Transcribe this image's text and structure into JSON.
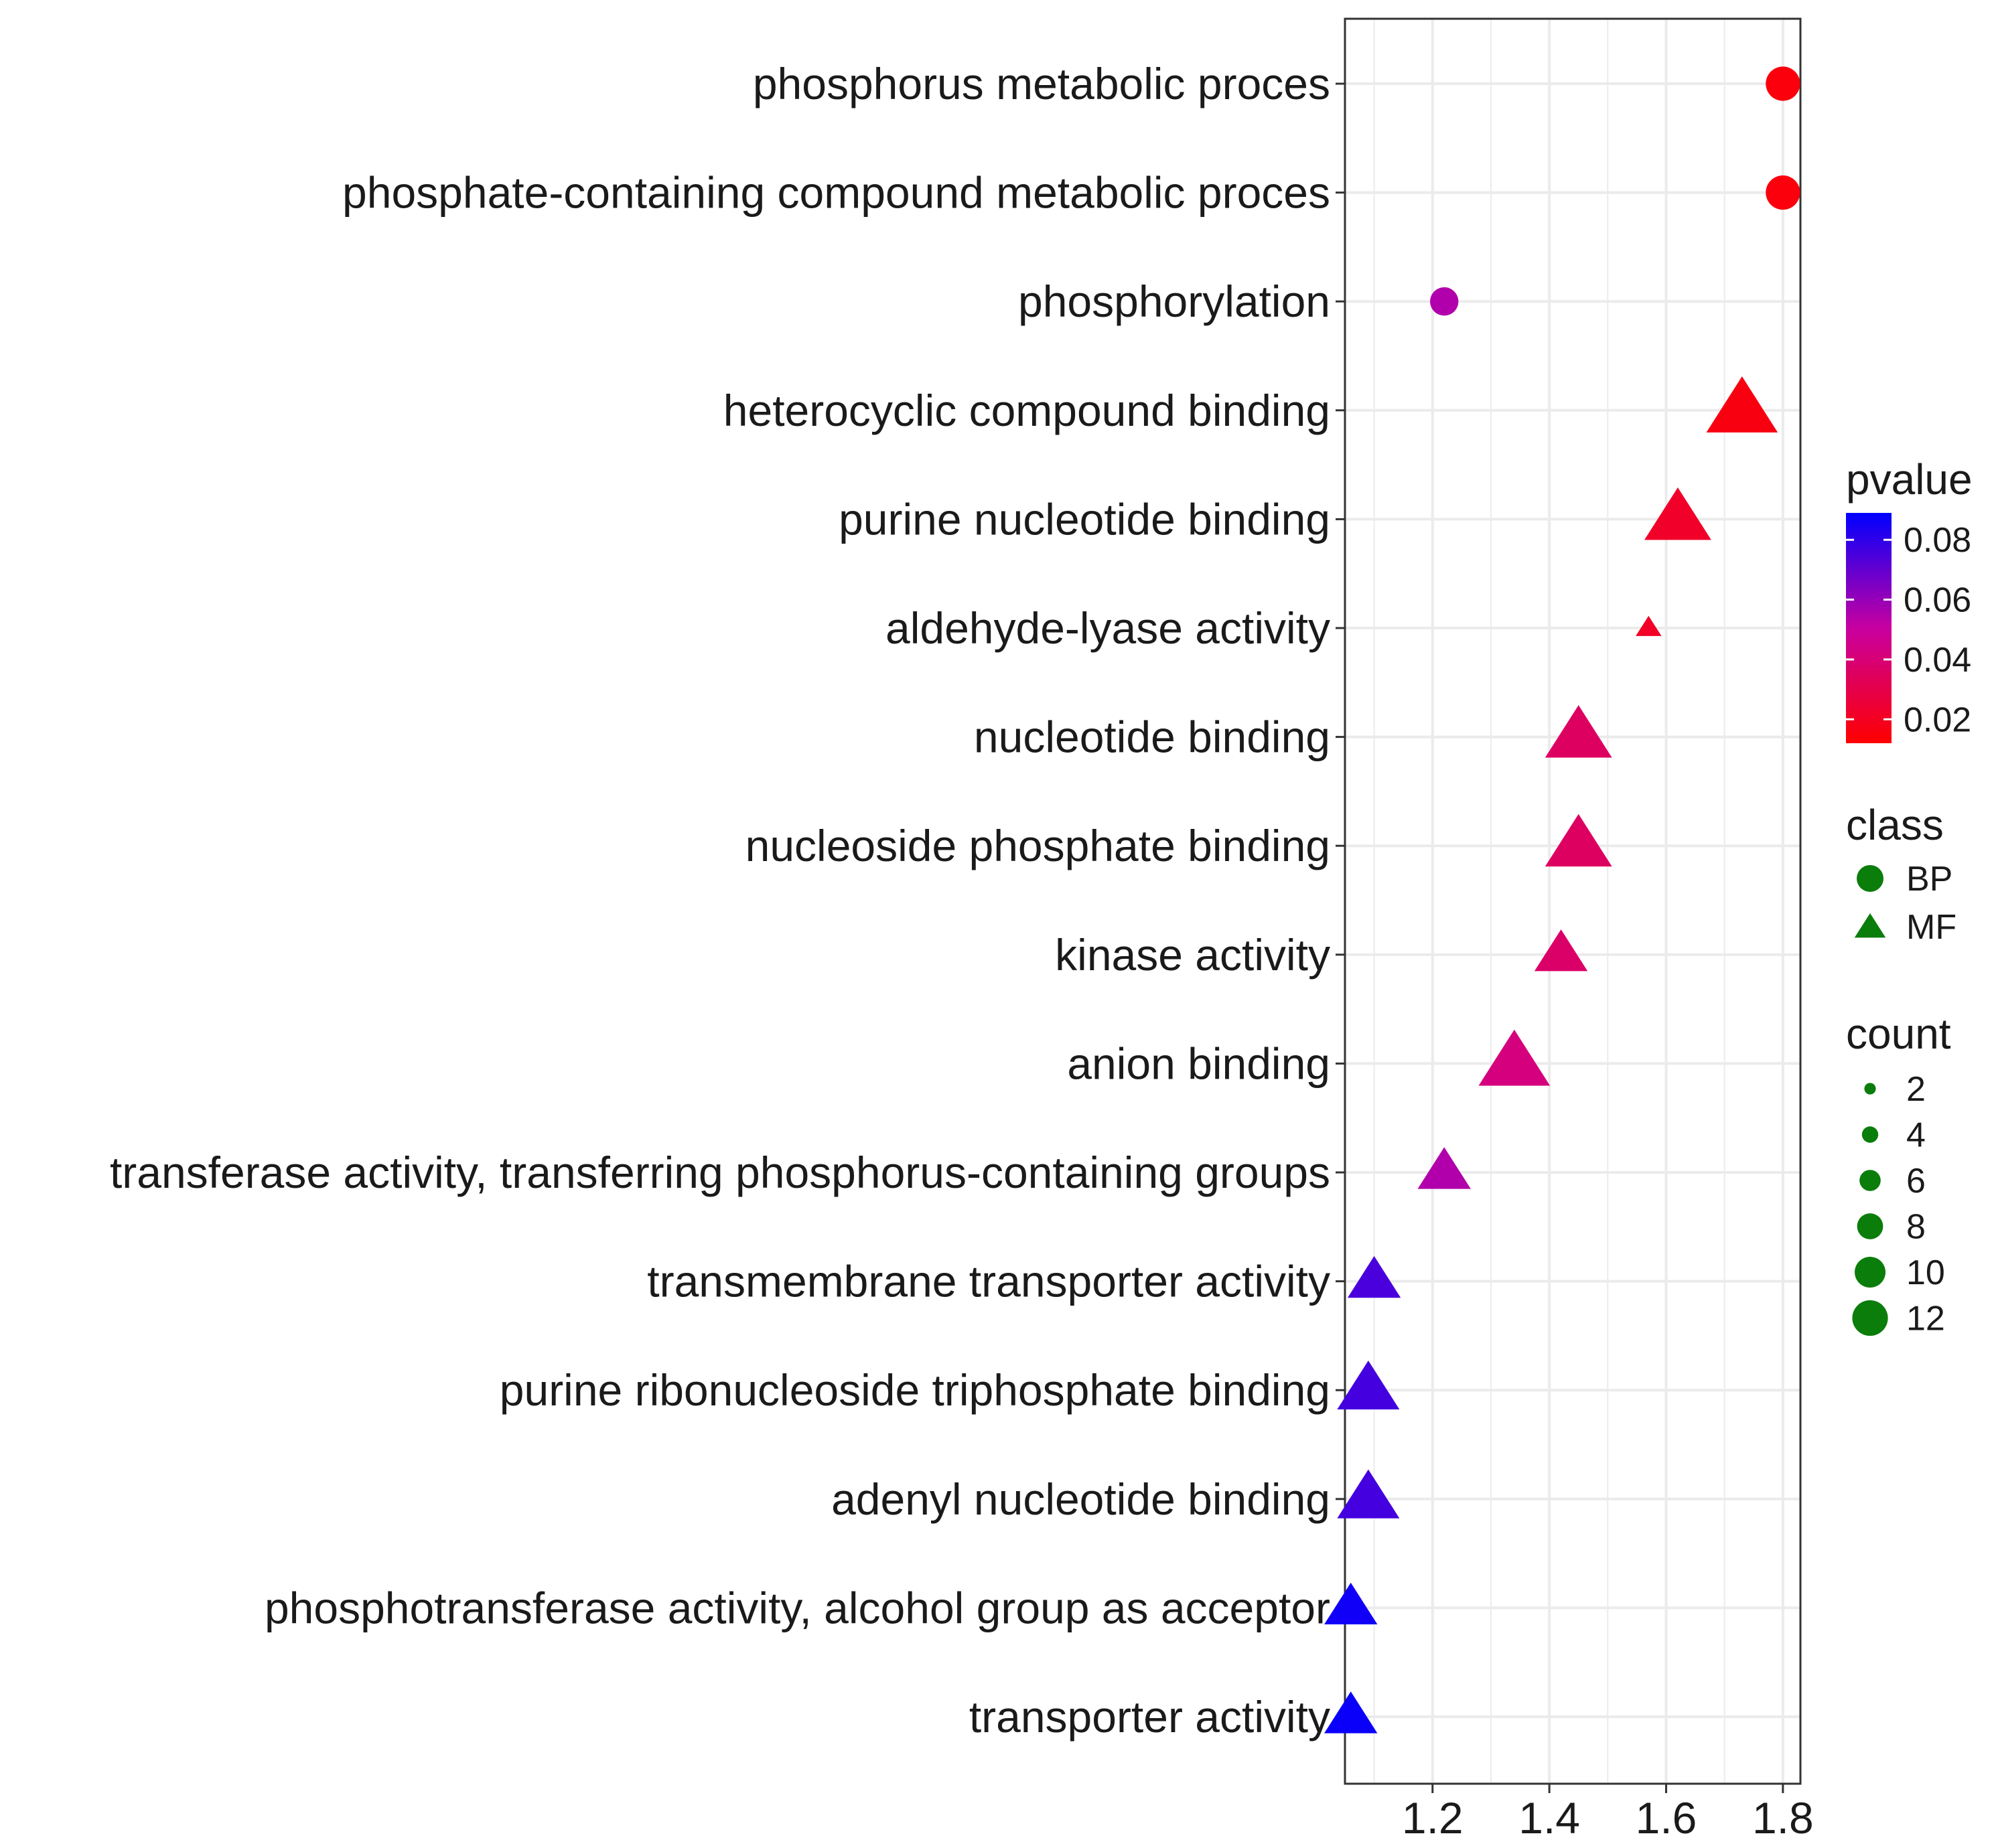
{
  "chart_data": {
    "type": "scatter",
    "title": "",
    "xlabel": "",
    "ylabel": "",
    "xlim": [
      1.05,
      1.83
    ],
    "x_ticks": [
      1.2,
      1.4,
      1.6,
      1.8
    ],
    "x_tick_labels": [
      "1.2",
      "1.4",
      "1.6",
      "1.8"
    ],
    "grid": true,
    "points": [
      {
        "term": "phosphorus metabolic proces",
        "x": 1.8,
        "pvalue": 0.015,
        "count": 8,
        "class": "BP"
      },
      {
        "term": "phosphate-containing compound metabolic proces",
        "x": 1.8,
        "pvalue": 0.015,
        "count": 8,
        "class": "BP"
      },
      {
        "term": "phosphorylation",
        "x": 1.22,
        "pvalue": 0.055,
        "count": 6,
        "class": "BP"
      },
      {
        "term": "heterocyclic compound binding",
        "x": 1.73,
        "pvalue": 0.016,
        "count": 12,
        "class": "MF"
      },
      {
        "term": "purine nucleotide binding",
        "x": 1.62,
        "pvalue": 0.022,
        "count": 11,
        "class": "MF"
      },
      {
        "term": "aldehyde-lyase activity",
        "x": 1.57,
        "pvalue": 0.021,
        "count": 2,
        "class": "MF"
      },
      {
        "term": "nucleotide binding",
        "x": 1.45,
        "pvalue": 0.035,
        "count": 11,
        "class": "MF"
      },
      {
        "term": "nucleoside phosphate binding",
        "x": 1.45,
        "pvalue": 0.035,
        "count": 11,
        "class": "MF"
      },
      {
        "term": "kinase activity",
        "x": 1.42,
        "pvalue": 0.037,
        "count": 8,
        "class": "MF"
      },
      {
        "term": "anion binding",
        "x": 1.34,
        "pvalue": 0.042,
        "count": 12,
        "class": "MF"
      },
      {
        "term": "transferase activity, transferring phosphorus-containing groups",
        "x": 1.22,
        "pvalue": 0.055,
        "count": 8,
        "class": "MF"
      },
      {
        "term": "transmembrane transporter activity",
        "x": 1.1,
        "pvalue": 0.075,
        "count": 8,
        "class": "MF"
      },
      {
        "term": "purine ribonucleoside triphosphate binding",
        "x": 1.09,
        "pvalue": 0.076,
        "count": 10,
        "class": "MF"
      },
      {
        "term": "adenyl nucleotide binding",
        "x": 1.09,
        "pvalue": 0.076,
        "count": 10,
        "class": "MF"
      },
      {
        "term": "phosphotransferase activity, alcohol group as acceptor",
        "x": 1.06,
        "pvalue": 0.086,
        "count": 8,
        "class": "MF"
      },
      {
        "term": "transporter activity",
        "x": 1.06,
        "pvalue": 0.087,
        "count": 8,
        "class": "MF"
      }
    ],
    "legend": {
      "placement": "right",
      "pvalue": {
        "title": "pvalue",
        "range": [
          0.012,
          0.089
        ],
        "ticks": [
          0.08,
          0.06,
          0.04,
          0.02
        ],
        "tick_labels": [
          "0.08",
          "0.06",
          "0.04",
          "0.02"
        ],
        "color_low": "#ff0000",
        "color_high": "#0000ff"
      },
      "class": {
        "title": "class",
        "items": [
          {
            "label": "BP",
            "shape": "circle"
          },
          {
            "label": "MF",
            "shape": "triangle"
          }
        ],
        "color": "#0a7d0a"
      },
      "count": {
        "title": "count",
        "items": [
          {
            "label": "2",
            "value": 2
          },
          {
            "label": "4",
            "value": 4
          },
          {
            "label": "6",
            "value": 6
          },
          {
            "label": "8",
            "value": 8
          },
          {
            "label": "10",
            "value": 10
          },
          {
            "label": "12",
            "value": 12
          }
        ],
        "color": "#0a7d0a"
      }
    },
    "colors": {
      "panel_border": "#333333",
      "grid": "#ebebeb",
      "text": "#1a1a1a"
    }
  }
}
